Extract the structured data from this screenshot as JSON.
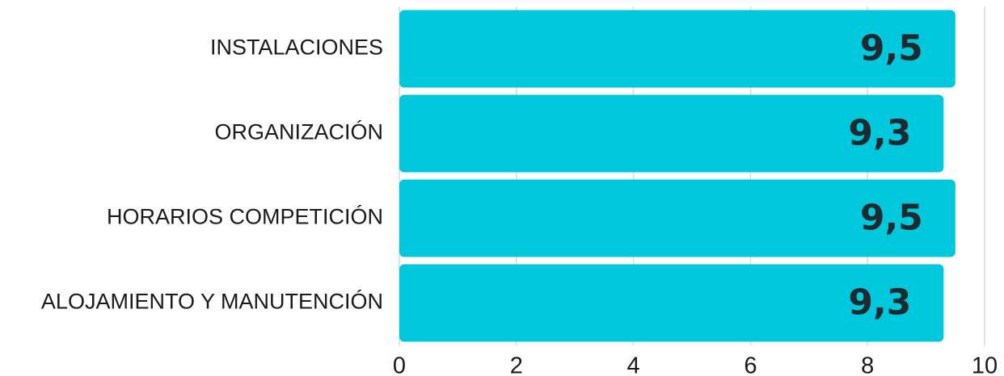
{
  "chart_data": {
    "type": "bar",
    "orientation": "horizontal",
    "categories": [
      "INSTALACIONES",
      "ORGANIZACIÓN",
      "HORARIOS COMPETICIÓN",
      "ALOJAMIENTO Y MANUTENCIÓN"
    ],
    "values": [
      9.5,
      9.3,
      9.5,
      9.3
    ],
    "value_labels": [
      "9,5",
      "9,3",
      "9,5",
      "9,3"
    ],
    "title": "",
    "xlabel": "",
    "ylabel": "",
    "xlim": [
      0,
      10
    ],
    "x_ticks": [
      "0",
      "2",
      "4",
      "6",
      "8",
      "10"
    ],
    "grid": "vertical",
    "legend": "none",
    "colors": {
      "bar": "#00c8dc",
      "grid": "#d9d9d9",
      "value_text": "#1f2a30",
      "label_text": "#1a1a1a"
    }
  }
}
